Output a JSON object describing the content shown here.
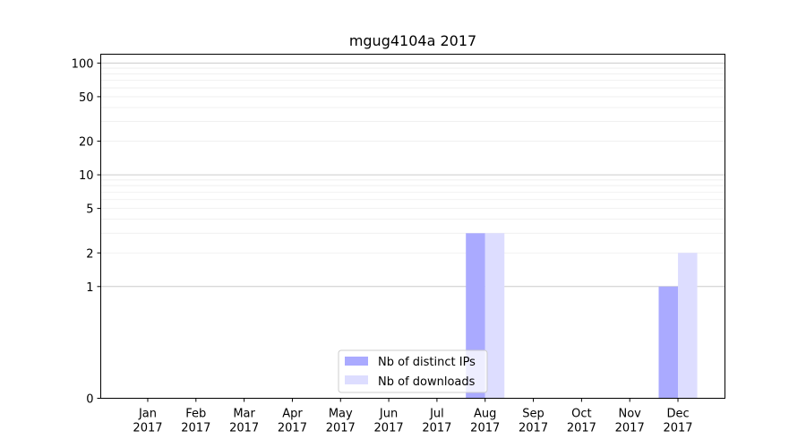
{
  "chart_data": {
    "type": "bar",
    "title": "mgug4104a 2017",
    "xlabel": "",
    "ylabel": "",
    "y_scale": "symlog",
    "ylim": [
      0,
      120
    ],
    "y_ticks": [
      {
        "value": 0,
        "label": "0"
      },
      {
        "value": 1,
        "label": "1"
      },
      {
        "value": 2,
        "label": "2"
      },
      {
        "value": 5,
        "label": "5"
      },
      {
        "value": 10,
        "label": "10"
      },
      {
        "value": 20,
        "label": "20"
      },
      {
        "value": 50,
        "label": "50"
      },
      {
        "value": 100,
        "label": "100"
      }
    ],
    "categories": [
      {
        "month": "Jan",
        "year": "2017"
      },
      {
        "month": "Feb",
        "year": "2017"
      },
      {
        "month": "Mar",
        "year": "2017"
      },
      {
        "month": "Apr",
        "year": "2017"
      },
      {
        "month": "May",
        "year": "2017"
      },
      {
        "month": "Jun",
        "year": "2017"
      },
      {
        "month": "Jul",
        "year": "2017"
      },
      {
        "month": "Aug",
        "year": "2017"
      },
      {
        "month": "Sep",
        "year": "2017"
      },
      {
        "month": "Oct",
        "year": "2017"
      },
      {
        "month": "Nov",
        "year": "2017"
      },
      {
        "month": "Dec",
        "year": "2017"
      }
    ],
    "series": [
      {
        "name": "Nb of distinct IPs",
        "color": "#aaaaff",
        "values": [
          0,
          0,
          0,
          0,
          0,
          0,
          0,
          3,
          0,
          0,
          0,
          1
        ]
      },
      {
        "name": "Nb of downloads",
        "color": "#ddddff",
        "values": [
          0,
          0,
          0,
          0,
          0,
          0,
          0,
          3,
          0,
          0,
          0,
          2
        ]
      }
    ],
    "grid": "y-major-and-minor",
    "legend_position": "bottom-center"
  }
}
